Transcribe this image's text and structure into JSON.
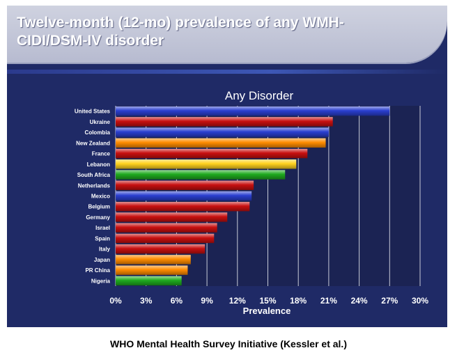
{
  "slide": {
    "title_line1": "Twelve-month (12-mo) prevalence of any WMH-",
    "title_line2": "CIDI/DSM-IV disorder"
  },
  "footer": "WHO Mental Health Survey Initiative (Kessler et al.)",
  "colors": {
    "blue": "#2a3fd0",
    "red": "#c81010",
    "orange": "#ff8c00",
    "yellow": "#ffd21f",
    "green": "#1faa1f",
    "plot_bg": "#1b2353",
    "grid": "#c8cbd8"
  },
  "chart_data": {
    "type": "bar",
    "orientation": "horizontal",
    "title": "Any Disorder",
    "xlabel": "Prevalence",
    "ylabel": "",
    "xlim": [
      0,
      30
    ],
    "xticks": [
      "0%",
      "3%",
      "6%",
      "9%",
      "12%",
      "15%",
      "18%",
      "21%",
      "24%",
      "27%",
      "30%"
    ],
    "grid": "vertical",
    "categories": [
      "United States",
      "Ukraine",
      "Colombia",
      "New Zealand",
      "France",
      "Lebanon",
      "South Africa",
      "Netherlands",
      "Mexico",
      "Belgium",
      "Germany",
      "Israel",
      "Spain",
      "Italy",
      "Japan",
      "PR China",
      "Nigeria"
    ],
    "values": [
      27.0,
      21.4,
      21.0,
      20.7,
      18.9,
      17.8,
      16.7,
      13.6,
      13.4,
      13.2,
      11.0,
      10.0,
      9.7,
      8.8,
      7.4,
      7.1,
      6.5
    ],
    "bar_colors": [
      "blue",
      "red",
      "blue",
      "orange",
      "red",
      "yellow",
      "green",
      "red",
      "blue",
      "red",
      "red",
      "red",
      "red",
      "red",
      "orange",
      "orange",
      "green"
    ]
  }
}
